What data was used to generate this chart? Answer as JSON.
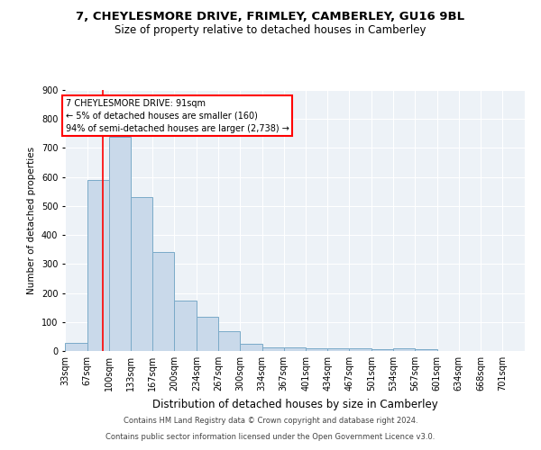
{
  "title": "7, CHEYLESMORE DRIVE, FRIMLEY, CAMBERLEY, GU16 9BL",
  "subtitle": "Size of property relative to detached houses in Camberley",
  "xlabel": "Distribution of detached houses by size in Camberley",
  "ylabel": "Number of detached properties",
  "footnote1": "Contains HM Land Registry data © Crown copyright and database right 2024.",
  "footnote2": "Contains public sector information licensed under the Open Government Licence v3.0.",
  "annotation_line1": "7 CHEYLESMORE DRIVE: 91sqm",
  "annotation_line2": "← 5% of detached houses are smaller (160)",
  "annotation_line3": "94% of semi-detached houses are larger (2,738) →",
  "bar_color": "#c9d9ea",
  "bar_edge_color": "#7aaac8",
  "red_line_x": 91,
  "categories": [
    "33sqm",
    "67sqm",
    "100sqm",
    "133sqm",
    "167sqm",
    "200sqm",
    "234sqm",
    "267sqm",
    "300sqm",
    "334sqm",
    "367sqm",
    "401sqm",
    "434sqm",
    "467sqm",
    "501sqm",
    "534sqm",
    "567sqm",
    "601sqm",
    "634sqm",
    "668sqm",
    "701sqm"
  ],
  "bin_edges": [
    33,
    67,
    100,
    133,
    167,
    200,
    234,
    267,
    300,
    334,
    367,
    401,
    434,
    467,
    501,
    534,
    567,
    601,
    634,
    668,
    701,
    735
  ],
  "values": [
    27,
    590,
    740,
    530,
    340,
    175,
    118,
    67,
    25,
    13,
    13,
    10,
    9,
    8,
    7,
    8,
    7,
    0,
    0,
    0,
    0
  ],
  "ylim": [
    0,
    900
  ],
  "yticks": [
    0,
    100,
    200,
    300,
    400,
    500,
    600,
    700,
    800,
    900
  ],
  "bg_color": "#edf2f7",
  "grid_color": "#ffffff",
  "title_fontsize": 9.5,
  "subtitle_fontsize": 8.5,
  "xlabel_fontsize": 8.5,
  "ylabel_fontsize": 7.5,
  "tick_fontsize": 7,
  "footnote_fontsize": 6.0,
  "annot_fontsize": 7.0
}
